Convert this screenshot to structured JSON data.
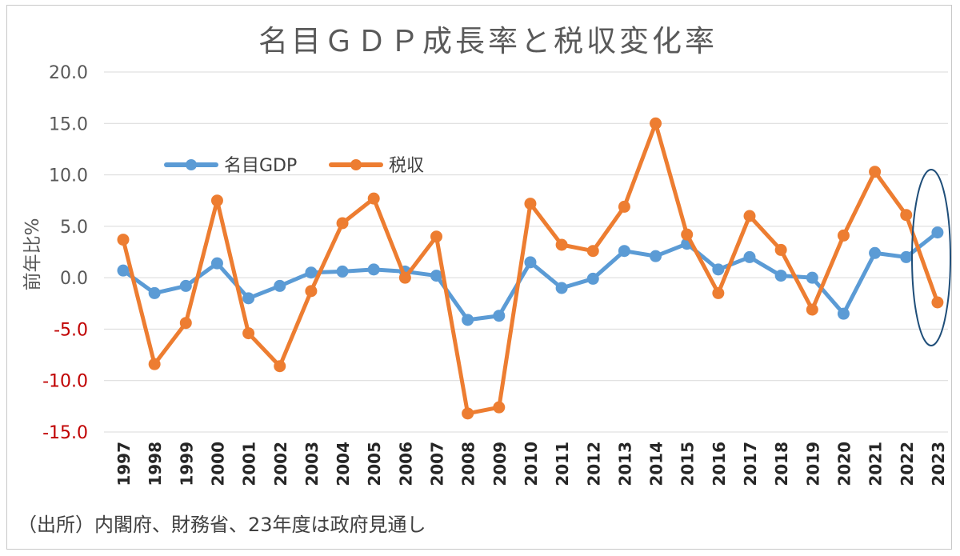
{
  "colors": {
    "gdp": "#5b9bd5",
    "tax": "#ed7d31",
    "grid": "#d9d9d9",
    "text": "#595959",
    "negative": "#c00000",
    "ellipse": "#1f4e79"
  },
  "source_note": "（出所）内閣府、財務省、23年度は政府見通し",
  "chart_data": {
    "type": "line",
    "title": "名目ＧＤＰ成長率と税収変化率",
    "xlabel": "",
    "ylabel": "前年比%",
    "ylim": [
      -15,
      20
    ],
    "yticks": [
      20,
      15,
      10,
      5,
      0,
      -5,
      -10,
      -15
    ],
    "ytick_labels": [
      "20.0",
      "15.0",
      "10.0",
      "5.0",
      "0.0",
      "-5.0",
      "-10.0",
      "-15.0"
    ],
    "grid": true,
    "legend_position": "upper-left",
    "categories": [
      "1997",
      "1998",
      "1999",
      "2000",
      "2001",
      "2002",
      "2003",
      "2004",
      "2005",
      "2006",
      "2007",
      "2008",
      "2009",
      "2010",
      "2011",
      "2012",
      "2013",
      "2014",
      "2015",
      "2016",
      "2017",
      "2018",
      "2019",
      "2020",
      "2021",
      "2022",
      "2023"
    ],
    "series": [
      {
        "name": "名目GDP",
        "color_key": "gdp",
        "values": [
          0.7,
          -1.5,
          -0.8,
          1.4,
          -2.0,
          -0.8,
          0.5,
          0.6,
          0.8,
          0.6,
          0.2,
          -4.1,
          -3.7,
          1.5,
          -1.0,
          -0.1,
          2.6,
          2.1,
          3.3,
          0.8,
          2.0,
          0.2,
          0.0,
          -3.5,
          2.4,
          2.0,
          4.4
        ]
      },
      {
        "name": "税収",
        "color_key": "tax",
        "values": [
          3.7,
          -8.4,
          -4.4,
          7.5,
          -5.4,
          -8.6,
          -1.3,
          5.3,
          7.7,
          0.0,
          4.0,
          -13.2,
          -12.6,
          7.2,
          3.2,
          2.6,
          6.9,
          15.0,
          4.2,
          -1.5,
          6.0,
          2.7,
          -3.1,
          4.1,
          10.3,
          6.1,
          -2.4
        ]
      }
    ],
    "annotations": [
      {
        "type": "ellipse",
        "target_category": "2023",
        "description": "highlight"
      }
    ]
  }
}
